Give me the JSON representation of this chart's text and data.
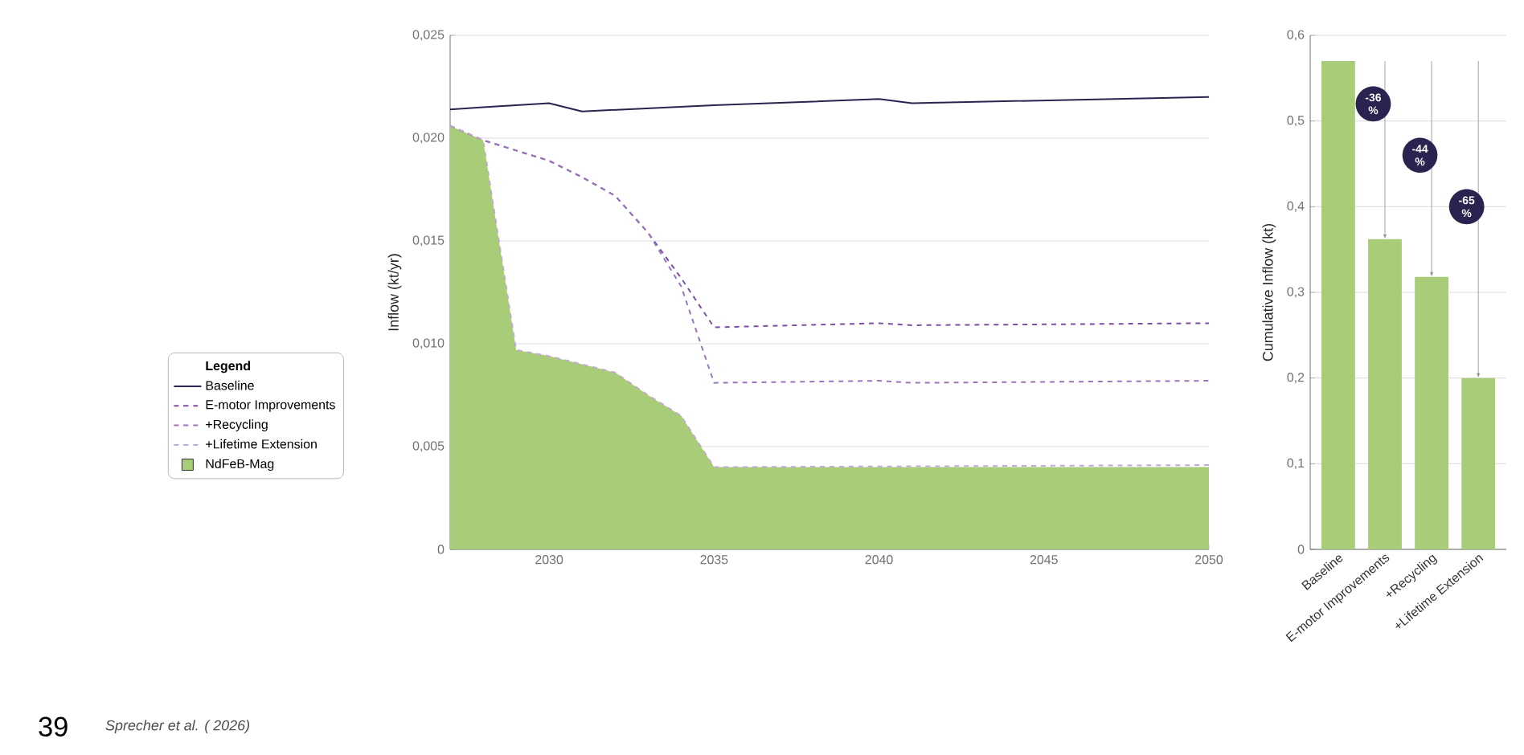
{
  "chart_data": [
    {
      "type": "line",
      "ylabel": "Inflow (kt/yr)",
      "legend_title": "Legend",
      "legend": "left",
      "grid": "y",
      "xlim": [
        2027,
        2050
      ],
      "xticks": [
        2030,
        2035,
        2040,
        2045,
        2050
      ],
      "ylim": [
        0,
        0.025
      ],
      "yticks": [
        0,
        {
          "value": 0.005,
          "label": "0,005"
        },
        {
          "value": 0.01,
          "label": "0,010"
        },
        {
          "value": 0.015,
          "label": "0,015"
        },
        {
          "value": 0.02,
          "label": "0,020"
        },
        {
          "value": 0.025,
          "label": "0,025"
        }
      ],
      "series": [
        {
          "name": "Baseline",
          "type": "line",
          "color": "#2b2250",
          "line_style": "solid",
          "x": [
            2027,
            2028,
            2030,
            2031,
            2035,
            2040,
            2041,
            2050
          ],
          "values": [
            0.0214,
            0.0215,
            0.0217,
            0.0213,
            0.0216,
            0.0219,
            0.0217,
            0.022
          ]
        },
        {
          "name": "E-motor Improvements",
          "type": "line",
          "color": "#7b4fa3",
          "line_style": "dashed",
          "x": [
            2027,
            2028,
            2030,
            2031,
            2032,
            2033,
            2034,
            2035,
            2040,
            2041,
            2050
          ],
          "values": [
            0.0206,
            0.0199,
            0.0189,
            0.0181,
            0.0172,
            0.0154,
            0.0132,
            0.0108,
            0.011,
            0.0109,
            0.011
          ]
        },
        {
          "name": "+Recycling",
          "type": "line",
          "color": "#9a75bb",
          "line_style": "dashed",
          "x": [
            2027,
            2028,
            2030,
            2031,
            2032,
            2033,
            2034,
            2035,
            2040,
            2041,
            2050
          ],
          "values": [
            0.0206,
            0.0199,
            0.0189,
            0.0181,
            0.0172,
            0.0154,
            0.0128,
            0.0081,
            0.0082,
            0.0081,
            0.0082
          ]
        },
        {
          "name": "+Lifetime Extension",
          "type": "line",
          "color": "#c3a8d8",
          "line_style": "dashed",
          "x": [
            2027,
            2028,
            2029,
            2030,
            2031,
            2032,
            2033,
            2034,
            2035,
            2050
          ],
          "values": [
            0.0206,
            0.0199,
            0.0097,
            0.0094,
            0.009,
            0.0086,
            0.0075,
            0.0065,
            0.004,
            0.0041
          ]
        },
        {
          "name": "NdFeB-Mag",
          "type": "area",
          "color": "#a9cc78",
          "x": [
            2027,
            2028,
            2029,
            2030,
            2031,
            2032,
            2033,
            2034,
            2035,
            2050
          ],
          "values": [
            0.0206,
            0.0199,
            0.0097,
            0.0094,
            0.009,
            0.0086,
            0.0075,
            0.0065,
            0.004,
            0.004
          ]
        }
      ],
      "annotations": [
        "39",
        "Sprecher et al. ( 2026)"
      ]
    },
    {
      "type": "bar",
      "ylabel": "Cumulative Inflow (kt)",
      "grid": "y",
      "color": "#a9cc78",
      "categories": [
        "Baseline",
        "E-motor Improvements",
        "+Recycling",
        "+Lifetime Extension"
      ],
      "values": [
        0.57,
        0.362,
        0.318,
        0.2
      ],
      "ylim": [
        0,
        0.6
      ],
      "yticks": [
        0,
        {
          "value": 0.1,
          "label": "0,1"
        },
        {
          "value": 0.2,
          "label": "0,2"
        },
        {
          "value": 0.3,
          "label": "0,3"
        },
        {
          "value": 0.4,
          "label": "0,4"
        },
        {
          "value": 0.5,
          "label": "0,5"
        },
        {
          "value": 0.6,
          "label": "0,6"
        }
      ],
      "annotations": [
        "-36 %",
        "-44 %",
        "-65 %"
      ]
    }
  ]
}
